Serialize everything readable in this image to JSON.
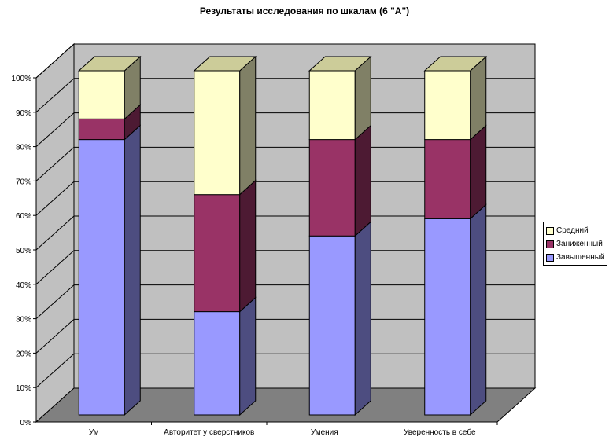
{
  "chart_data": {
    "type": "bar",
    "stacked": true,
    "percent_stacked": true,
    "three_d": true,
    "title": "Результаты исследования по шкалам (6 \"А\")",
    "categories": [
      "Ум",
      "Авторитет у сверстников",
      "Умения",
      "Уверенность в себе"
    ],
    "series": [
      {
        "name": "Завышенный",
        "values": [
          80,
          30,
          52,
          57
        ],
        "color": "#9999FF",
        "side_color": "#4D4D80"
      },
      {
        "name": "Заниженный",
        "values": [
          6,
          34,
          28,
          23
        ],
        "color": "#993366",
        "side_color": "#4D1A33"
      },
      {
        "name": "Средний",
        "values": [
          14,
          36,
          20,
          20
        ],
        "color": "#FFFFCC",
        "side_color": "#808066"
      }
    ],
    "top_color": "#CCCC99",
    "ylim": [
      0,
      100
    ],
    "yticks": [
      "0%",
      "10%",
      "20%",
      "30%",
      "40%",
      "50%",
      "60%",
      "70%",
      "80%",
      "90%",
      "100%"
    ],
    "wall_color": "#C0C0C0",
    "floor_color": "#808080",
    "grid": true,
    "legend_position": "right"
  }
}
